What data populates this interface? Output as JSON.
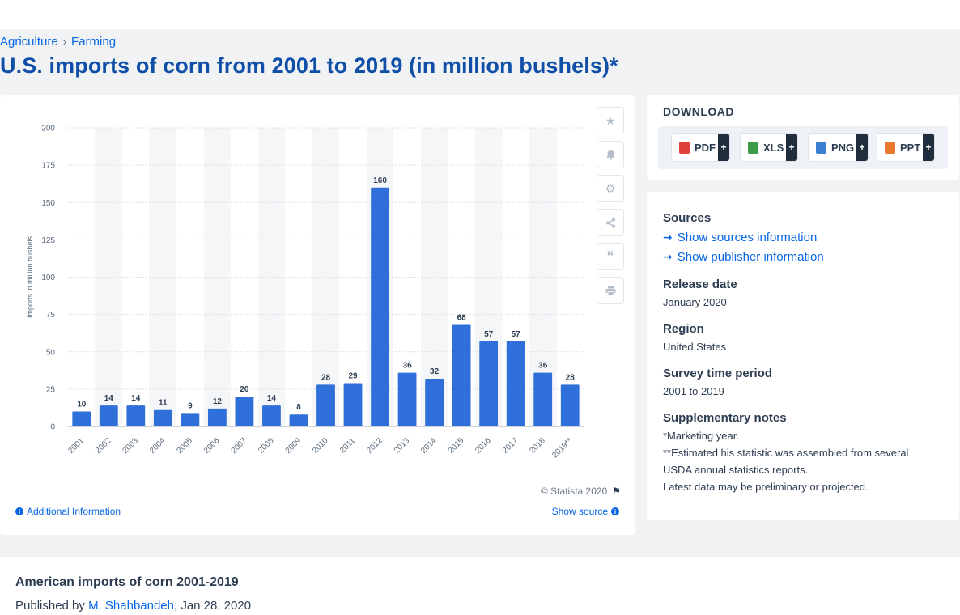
{
  "breadcrumb": [
    "Agriculture",
    "Farming"
  ],
  "page_title": "U.S. imports of corn from 2001 to 2019 (in million bushels)*",
  "chart_data": {
    "type": "bar",
    "categories": [
      "2001",
      "2002",
      "2003",
      "2004",
      "2005",
      "2006",
      "2007",
      "2008",
      "2009",
      "2010",
      "2011",
      "2012",
      "2013",
      "2014",
      "2015",
      "2016",
      "2017",
      "2018",
      "2019**"
    ],
    "values": [
      10,
      14,
      14,
      11,
      9,
      12,
      20,
      14,
      8,
      28,
      29,
      160,
      36,
      32,
      68,
      57,
      57,
      36,
      28
    ],
    "title": "",
    "xlabel": "",
    "ylabel": "Imports in million bushels",
    "ylim": [
      0,
      200
    ],
    "yticks": [
      0,
      25,
      50,
      75,
      100,
      125,
      150,
      175,
      200
    ],
    "bar_color": "#2f6fd9",
    "grid": true,
    "data_labels": true
  },
  "chart_footer": {
    "copyright": "© Statista 2020",
    "additional_info": "Additional Information",
    "show_source": "Show source"
  },
  "tools": [
    "star-icon",
    "bell-icon",
    "gear-icon",
    "share-icon",
    "quote-icon",
    "print-icon"
  ],
  "download": {
    "title": "DOWNLOAD",
    "buttons": [
      {
        "label": "PDF",
        "color": "#e0413a"
      },
      {
        "label": "XLS",
        "color": "#3a9b48"
      },
      {
        "label": "PNG",
        "color": "#3b7fd0"
      },
      {
        "label": "PPT",
        "color": "#e8792f"
      }
    ]
  },
  "info": {
    "sources_heading": "Sources",
    "show_sources": "Show sources information",
    "show_publisher": "Show publisher information",
    "release_heading": "Release date",
    "release_value": "January 2020",
    "region_heading": "Region",
    "region_value": "United States",
    "survey_heading": "Survey time period",
    "survey_value": "2001 to 2019",
    "notes_heading": "Supplementary notes",
    "notes": [
      "*Marketing year.",
      "**Estimated his statistic was assembled from several",
      "USDA annual statistics reports.",
      "Latest data may be preliminary or projected."
    ]
  },
  "bottom": {
    "title": "American imports of corn 2001-2019",
    "published_by": "Published by",
    "author": "M. Shahbandeh",
    "date": ", Jan 28, 2020"
  }
}
